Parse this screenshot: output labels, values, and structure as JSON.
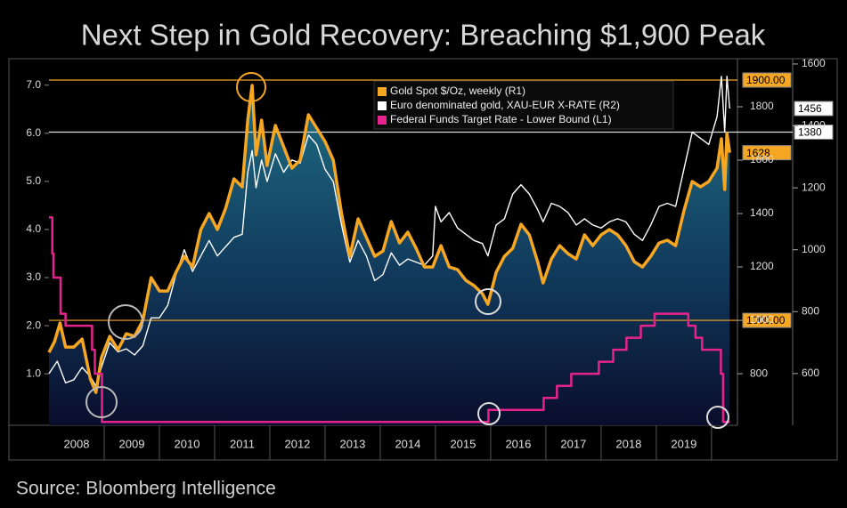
{
  "chart_data": {
    "type": "line",
    "title": "Next Step in Gold Recovery: Breaching $1,900 Peak",
    "source": "Source: Bloomberg Intelligence",
    "xlim": [
      2008,
      2020.47
    ],
    "xticks": [
      2008,
      2009,
      2010,
      2011,
      2012,
      2013,
      2014,
      2015,
      2016,
      2017,
      2018,
      2019
    ],
    "ylim": [
      -0.07,
      7.55
    ],
    "yticks": [
      {
        "value": 1,
        "label": "1.0"
      },
      {
        "value": 2,
        "label": "2.0"
      },
      {
        "value": 3,
        "label": "3.0"
      },
      {
        "value": 4,
        "label": "4.0"
      },
      {
        "value": 5,
        "label": "5.0"
      },
      {
        "value": 6,
        "label": "6.0"
      },
      {
        "value": 7,
        "label": "7.0"
      }
    ],
    "y2lim": [
      607,
      1980
    ],
    "y2ticks": [
      800,
      1000,
      1200,
      1400,
      1600,
      1800
    ],
    "y3lim": [
      433,
      1617
    ],
    "y3ticks": [
      600,
      800,
      1000,
      1200,
      1400,
      1600
    ],
    "legend": "top-right",
    "series": [
      {
        "name": "Gold Spot $/Oz, weekly (R1)",
        "color": "#f5a623",
        "axis": "y2",
        "area": true,
        "x": [
          2008.0,
          2008.1,
          2008.2,
          2008.3,
          2008.45,
          2008.6,
          2008.75,
          2008.85,
          2008.95,
          2009.1,
          2009.25,
          2009.4,
          2009.55,
          2009.7,
          2009.85,
          2010.0,
          2010.15,
          2010.3,
          2010.45,
          2010.6,
          2010.75,
          2010.9,
          2011.05,
          2011.2,
          2011.35,
          2011.5,
          2011.6,
          2011.68,
          2011.75,
          2011.85,
          2011.95,
          2012.1,
          2012.25,
          2012.4,
          2012.55,
          2012.7,
          2012.85,
          2013.0,
          2013.15,
          2013.3,
          2013.45,
          2013.6,
          2013.75,
          2013.9,
          2014.05,
          2014.2,
          2014.35,
          2014.5,
          2014.65,
          2014.8,
          2014.95,
          2015.1,
          2015.25,
          2015.4,
          2015.55,
          2015.7,
          2015.85,
          2015.95,
          2016.1,
          2016.25,
          2016.4,
          2016.55,
          2016.7,
          2016.85,
          2016.95,
          2017.1,
          2017.25,
          2017.4,
          2017.55,
          2017.7,
          2017.85,
          2018.0,
          2018.15,
          2018.3,
          2018.45,
          2018.6,
          2018.75,
          2018.9,
          2019.05,
          2019.2,
          2019.35,
          2019.5,
          2019.65,
          2019.8,
          2019.95,
          2020.1,
          2020.18,
          2020.24,
          2020.28,
          2020.33
        ],
        "values": [
          880,
          920,
          990,
          900,
          900,
          930,
          780,
          730,
          860,
          940,
          890,
          950,
          940,
          1000,
          1160,
          1110,
          1110,
          1180,
          1240,
          1200,
          1340,
          1400,
          1340,
          1420,
          1530,
          1500,
          1750,
          1880,
          1620,
          1750,
          1580,
          1730,
          1650,
          1570,
          1600,
          1770,
          1720,
          1670,
          1600,
          1400,
          1240,
          1380,
          1310,
          1240,
          1260,
          1370,
          1290,
          1330,
          1270,
          1200,
          1200,
          1280,
          1200,
          1190,
          1150,
          1130,
          1100,
          1060,
          1180,
          1240,
          1270,
          1360,
          1320,
          1220,
          1140,
          1230,
          1280,
          1250,
          1230,
          1320,
          1280,
          1320,
          1340,
          1320,
          1280,
          1220,
          1200,
          1240,
          1290,
          1300,
          1280,
          1410,
          1520,
          1500,
          1520,
          1570,
          1680,
          1490,
          1700,
          1628
        ]
      },
      {
        "name": "Euro denominated gold, XAU-EUR X-RATE (R2)",
        "color": "#ffffff",
        "axis": "y3",
        "x": [
          2008.0,
          2008.15,
          2008.3,
          2008.45,
          2008.6,
          2008.75,
          2008.85,
          2008.95,
          2009.1,
          2009.25,
          2009.4,
          2009.55,
          2009.7,
          2009.85,
          2010.0,
          2010.15,
          2010.3,
          2010.45,
          2010.6,
          2010.75,
          2010.9,
          2011.05,
          2011.2,
          2011.35,
          2011.5,
          2011.6,
          2011.68,
          2011.75,
          2011.85,
          2011.95,
          2012.1,
          2012.25,
          2012.4,
          2012.55,
          2012.7,
          2012.85,
          2013.0,
          2013.15,
          2013.3,
          2013.45,
          2013.6,
          2013.75,
          2013.9,
          2014.05,
          2014.2,
          2014.35,
          2014.5,
          2014.65,
          2014.8,
          2014.95,
          2015.0,
          2015.1,
          2015.25,
          2015.4,
          2015.55,
          2015.7,
          2015.85,
          2015.95,
          2016.1,
          2016.25,
          2016.4,
          2016.55,
          2016.7,
          2016.85,
          2016.95,
          2017.1,
          2017.25,
          2017.4,
          2017.55,
          2017.7,
          2017.85,
          2018.0,
          2018.15,
          2018.3,
          2018.45,
          2018.6,
          2018.75,
          2018.9,
          2019.05,
          2019.2,
          2019.35,
          2019.5,
          2019.65,
          2019.8,
          2019.95,
          2020.1,
          2020.18,
          2020.24,
          2020.28,
          2020.33
        ],
        "values": [
          600,
          640,
          570,
          580,
          620,
          590,
          560,
          620,
          700,
          670,
          680,
          660,
          690,
          780,
          780,
          820,
          920,
          1000,
          930,
          980,
          1030,
          980,
          1010,
          1040,
          1050,
          1250,
          1320,
          1200,
          1290,
          1220,
          1310,
          1250,
          1290,
          1280,
          1370,
          1340,
          1260,
          1220,
          1080,
          960,
          1030,
          980,
          900,
          920,
          990,
          950,
          970,
          960,
          950,
          980,
          1140,
          1090,
          1120,
          1070,
          1050,
          1030,
          1020,
          980,
          1080,
          1100,
          1180,
          1210,
          1180,
          1130,
          1090,
          1150,
          1140,
          1120,
          1080,
          1100,
          1080,
          1070,
          1090,
          1100,
          1090,
          1050,
          1030,
          1080,
          1140,
          1150,
          1140,
          1260,
          1380,
          1360,
          1340,
          1430,
          1560,
          1380,
          1560,
          1456
        ]
      },
      {
        "name": "Federal Funds Target Rate - Lower Bound (L1)",
        "color": "#e6238c",
        "axis": "y",
        "x": [
          2008.0,
          2008.06,
          2008.06,
          2008.08,
          2008.08,
          2008.21,
          2008.21,
          2008.3,
          2008.3,
          2008.78,
          2008.78,
          2008.83,
          2008.83,
          2008.96,
          2008.96,
          2015.96,
          2015.96,
          2016.96,
          2016.96,
          2017.2,
          2017.2,
          2017.46,
          2017.46,
          2017.96,
          2017.96,
          2018.22,
          2018.22,
          2018.46,
          2018.46,
          2018.72,
          2018.72,
          2018.97,
          2018.97,
          2019.58,
          2019.58,
          2019.71,
          2019.71,
          2019.83,
          2019.83,
          2020.17,
          2020.17,
          2020.21,
          2020.21,
          2020.33
        ],
        "values": [
          4.25,
          4.25,
          3.5,
          3.5,
          3.0,
          3.0,
          2.25,
          2.25,
          2.0,
          2.0,
          1.5,
          1.5,
          1.0,
          1.0,
          0,
          0,
          0.25,
          0.25,
          0.5,
          0.5,
          0.75,
          0.75,
          1.0,
          1.0,
          1.25,
          1.25,
          1.5,
          1.5,
          1.75,
          1.75,
          2.0,
          2.0,
          2.25,
          2.25,
          2.0,
          2.0,
          1.75,
          1.75,
          1.5,
          1.5,
          1.0,
          1.0,
          0,
          0
        ]
      }
    ],
    "reference_lines": [
      {
        "axis": "y2",
        "value": 1900,
        "label": "1900.00",
        "color": "#f5a623"
      },
      {
        "axis": "y2",
        "value": 1000,
        "label": "1000.00",
        "color": "#f5a623"
      },
      {
        "axis": "y3",
        "value": 1380,
        "color": "#dddddd"
      }
    ]
  }
}
